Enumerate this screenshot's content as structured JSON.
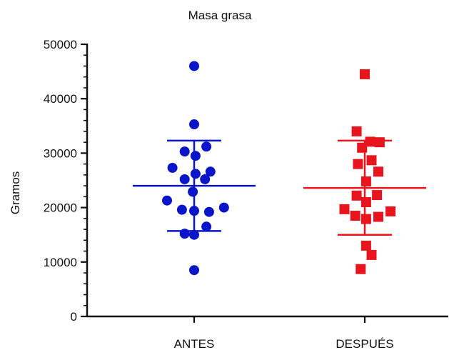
{
  "chart_data": {
    "type": "scatter",
    "title": "Masa grasa",
    "xlabel": "",
    "ylabel": "Gramos",
    "ylim": [
      0,
      50000
    ],
    "yticks": [
      0,
      10000,
      20000,
      30000,
      40000,
      50000
    ],
    "grid": false,
    "legend": "none",
    "categories": [
      "ANTES",
      "DESPUÉS"
    ],
    "series": [
      {
        "category": "ANTES",
        "color": "#0a14c8",
        "marker": "circle",
        "mean": 24000,
        "sd_upper": 32300,
        "sd_lower": 15700,
        "points": [
          {
            "offset": 0,
            "y": 46000
          },
          {
            "offset": 0,
            "y": 35300
          },
          {
            "offset": -0.35,
            "y": 30300
          },
          {
            "offset": 0.05,
            "y": 29500
          },
          {
            "offset": 0.45,
            "y": 31200
          },
          {
            "offset": -0.8,
            "y": 27300
          },
          {
            "offset": -0.35,
            "y": 25200
          },
          {
            "offset": 0.05,
            "y": 26200
          },
          {
            "offset": 0.4,
            "y": 25200
          },
          {
            "offset": 0.6,
            "y": 26600
          },
          {
            "offset": -0.05,
            "y": 22900
          },
          {
            "offset": -1.0,
            "y": 21300
          },
          {
            "offset": -0.45,
            "y": 19600
          },
          {
            "offset": 0.0,
            "y": 19400
          },
          {
            "offset": 0.55,
            "y": 19200
          },
          {
            "offset": 1.1,
            "y": 20000
          },
          {
            "offset": 0.45,
            "y": 16500
          },
          {
            "offset": -0.35,
            "y": 15200
          },
          {
            "offset": 0.0,
            "y": 15000
          },
          {
            "offset": 0.0,
            "y": 8500
          }
        ]
      },
      {
        "category": "DESPUÉS",
        "color": "#e8141e",
        "marker": "square",
        "mean": 23600,
        "sd_upper": 32300,
        "sd_lower": 15000,
        "points": [
          {
            "offset": 0,
            "y": 44500
          },
          {
            "offset": -0.3,
            "y": 34000
          },
          {
            "offset": 0.2,
            "y": 32100
          },
          {
            "offset": 0.55,
            "y": 32000
          },
          {
            "offset": -0.1,
            "y": 31000
          },
          {
            "offset": -0.25,
            "y": 28000
          },
          {
            "offset": 0.25,
            "y": 28700
          },
          {
            "offset": 0.5,
            "y": 26600
          },
          {
            "offset": 0.05,
            "y": 24800
          },
          {
            "offset": -0.3,
            "y": 22200
          },
          {
            "offset": 0.45,
            "y": 22300
          },
          {
            "offset": 0.05,
            "y": 21000
          },
          {
            "offset": -0.75,
            "y": 19700
          },
          {
            "offset": -0.35,
            "y": 18500
          },
          {
            "offset": 0.05,
            "y": 17900
          },
          {
            "offset": 0.5,
            "y": 18300
          },
          {
            "offset": 0.95,
            "y": 19300
          },
          {
            "offset": 0.05,
            "y": 13000
          },
          {
            "offset": 0.25,
            "y": 11300
          },
          {
            "offset": -0.15,
            "y": 8700
          }
        ]
      }
    ]
  }
}
